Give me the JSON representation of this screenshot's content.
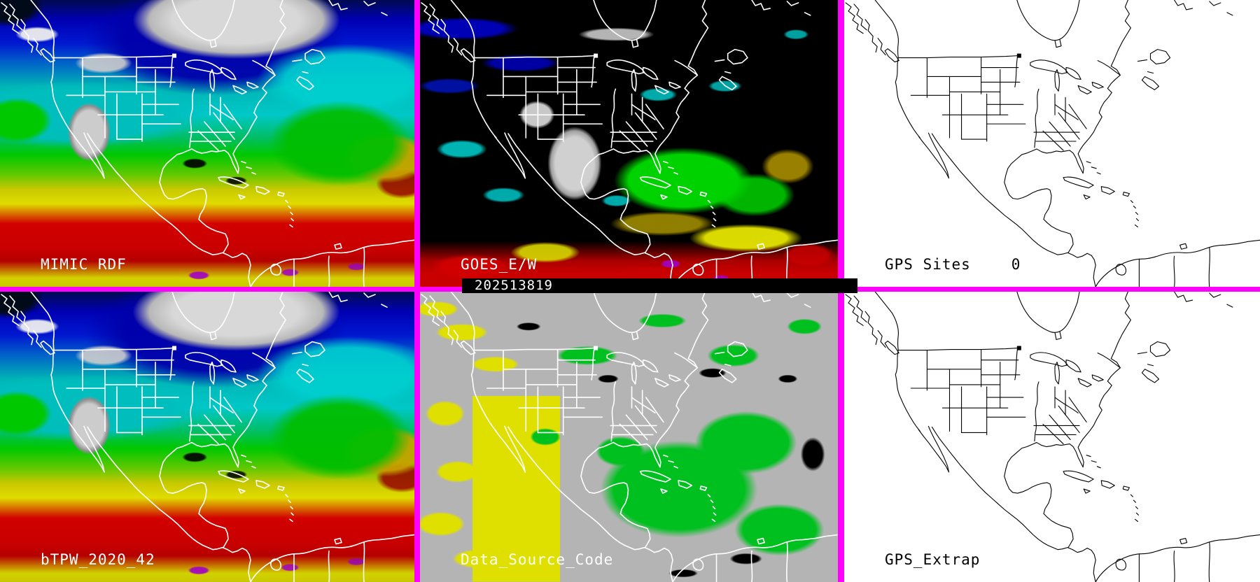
{
  "panels": {
    "mimic_rdf": {
      "label": "MIMIC RDF"
    },
    "goes_ew": {
      "label": "GOES_E/W",
      "timestamp": "202513819"
    },
    "gps_sites": {
      "label": "GPS Sites",
      "count": "0"
    },
    "btpw": {
      "label": "bTPW_2020_42"
    },
    "data_source": {
      "label": "Data_Source_Code"
    },
    "gps_extrap": {
      "label": "GPS_Extrap"
    }
  },
  "colors": {
    "panel_border": "#ff00ff",
    "label_on_dark": "#ffffff",
    "label_on_light": "#000000",
    "goes_background": "#000000",
    "source_code_gray": "#b4b4b4",
    "source_code_green": "#00c020",
    "source_code_yellow": "#e0e000",
    "tpw_scale": [
      "#0000b4",
      "#00c8c8",
      "#00c800",
      "#e0dc00",
      "#c80000",
      "#a000c8"
    ]
  }
}
